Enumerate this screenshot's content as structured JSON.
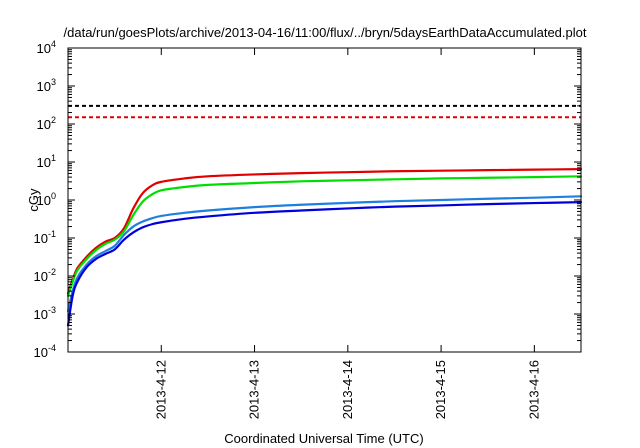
{
  "chart_data": {
    "type": "line",
    "title": "/data/run/goesPlots/archive/2013-04-16/11:00/flux/../bryn/5daysEarthDataAccumulated.plot",
    "xlabel": "Coordinated Universal Time (UTC)",
    "ylabel": "cGy",
    "y_scale": "log",
    "ylim": [
      0.0001,
      10000
    ],
    "xlim": [
      0,
      5.5
    ],
    "grid": false,
    "legend": "none",
    "x_ticks": [
      {
        "x": 1,
        "label": "2013-4-12"
      },
      {
        "x": 2,
        "label": "2013-4-13"
      },
      {
        "x": 3,
        "label": "2013-4-14"
      },
      {
        "x": 4,
        "label": "2013-4-15"
      },
      {
        "x": 5,
        "label": "2013-4-16"
      }
    ],
    "y_ticks": [
      {
        "y": 0.0001,
        "base": "10",
        "exp": "-4"
      },
      {
        "y": 0.001,
        "base": "10",
        "exp": "-3"
      },
      {
        "y": 0.01,
        "base": "10",
        "exp": "-2"
      },
      {
        "y": 0.1,
        "base": "10",
        "exp": "-1"
      },
      {
        "y": 1,
        "base": "10",
        "exp": "0"
      },
      {
        "y": 10,
        "base": "10",
        "exp": "1"
      },
      {
        "y": 100,
        "base": "10",
        "exp": "2"
      },
      {
        "y": 1000,
        "base": "10",
        "exp": "3"
      },
      {
        "y": 10000,
        "base": "10",
        "exp": "4"
      }
    ],
    "thresholds": [
      {
        "y": 300,
        "color": "#000000",
        "style": "dashed"
      },
      {
        "y": 150,
        "color": "#e00000",
        "style": "dashed"
      }
    ],
    "series": [
      {
        "color": "#e00000",
        "x": [
          0,
          0.05,
          0.1,
          0.2,
          0.3,
          0.4,
          0.5,
          0.6,
          0.7,
          0.8,
          0.9,
          1.0,
          1.25,
          1.5,
          2.0,
          2.5,
          3.0,
          3.5,
          4.0,
          4.5,
          5.0,
          5.5
        ],
        "y": [
          0.0035,
          0.008,
          0.016,
          0.032,
          0.055,
          0.08,
          0.1,
          0.18,
          0.6,
          1.5,
          2.4,
          3.0,
          3.7,
          4.2,
          4.7,
          5.1,
          5.4,
          5.7,
          5.9,
          6.1,
          6.3,
          6.5
        ]
      },
      {
        "color": "#00dd00",
        "x": [
          0,
          0.05,
          0.1,
          0.2,
          0.3,
          0.4,
          0.5,
          0.6,
          0.7,
          0.8,
          0.9,
          1.0,
          1.25,
          1.5,
          2.0,
          2.5,
          3.0,
          3.5,
          4.0,
          4.5,
          5.0,
          5.5
        ],
        "y": [
          0.003,
          0.007,
          0.014,
          0.028,
          0.048,
          0.07,
          0.09,
          0.15,
          0.4,
          0.9,
          1.4,
          1.8,
          2.2,
          2.5,
          2.8,
          3.1,
          3.3,
          3.5,
          3.7,
          3.85,
          4.0,
          4.2
        ]
      },
      {
        "color": "#1e7fe0",
        "x": [
          0,
          0.05,
          0.1,
          0.2,
          0.3,
          0.4,
          0.5,
          0.6,
          0.7,
          0.8,
          0.9,
          1.0,
          1.25,
          1.5,
          2.0,
          2.5,
          3.0,
          3.5,
          4.0,
          4.5,
          5.0,
          5.5
        ],
        "y": [
          0.0012,
          0.004,
          0.009,
          0.02,
          0.033,
          0.045,
          0.062,
          0.12,
          0.2,
          0.27,
          0.33,
          0.38,
          0.46,
          0.53,
          0.65,
          0.75,
          0.84,
          0.93,
          1.0,
          1.08,
          1.15,
          1.25
        ]
      },
      {
        "color": "#0000dd",
        "x": [
          0,
          0.05,
          0.1,
          0.2,
          0.3,
          0.4,
          0.5,
          0.6,
          0.7,
          0.8,
          0.9,
          1.0,
          1.25,
          1.5,
          2.0,
          2.5,
          3.0,
          3.5,
          4.0,
          4.5,
          5.0,
          5.5
        ],
        "y": [
          0.0005,
          0.003,
          0.007,
          0.017,
          0.028,
          0.038,
          0.05,
          0.09,
          0.14,
          0.19,
          0.23,
          0.26,
          0.32,
          0.37,
          0.46,
          0.53,
          0.6,
          0.67,
          0.72,
          0.78,
          0.83,
          0.88
        ]
      }
    ]
  }
}
